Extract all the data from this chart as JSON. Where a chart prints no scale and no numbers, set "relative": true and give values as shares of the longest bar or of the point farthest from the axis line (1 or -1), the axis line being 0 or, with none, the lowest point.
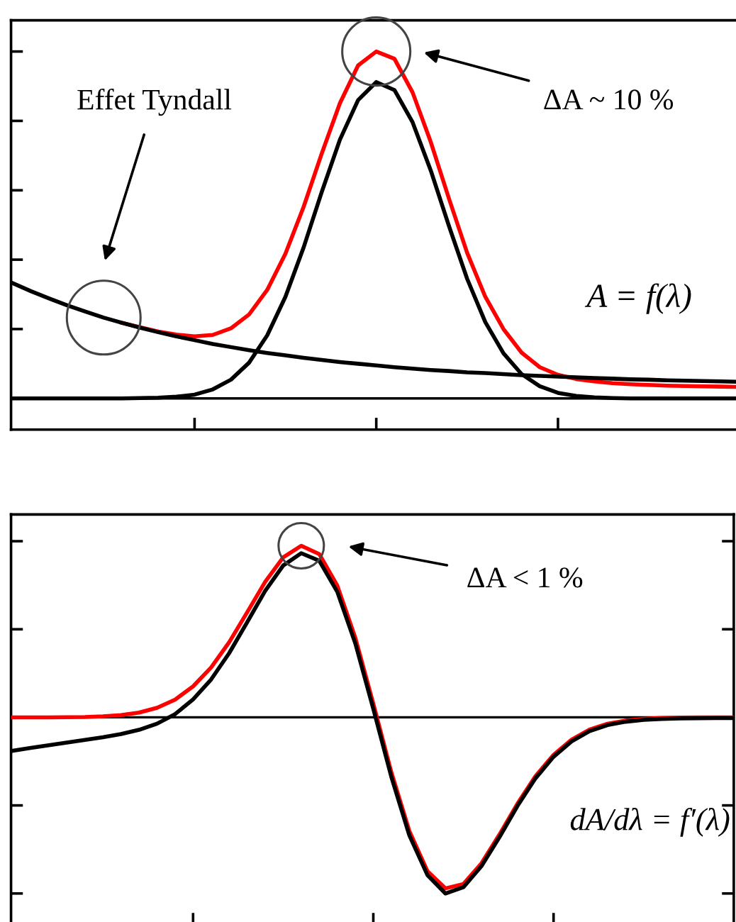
{
  "chart_data": [
    {
      "type": "line",
      "relative": true,
      "tick_labels": false,
      "grid": false,
      "legend": false,
      "marker": "none",
      "line_style": "solid",
      "categories": [
        null,
        null,
        null,
        null,
        null,
        null,
        null,
        null,
        null,
        null,
        null,
        null,
        null,
        null,
        null,
        null,
        null,
        null,
        null,
        null,
        null,
        null,
        null,
        null,
        null,
        null,
        null,
        null,
        null,
        null,
        null,
        null,
        null,
        null,
        null,
        null,
        null,
        null,
        null,
        null,
        null
      ],
      "series": [
        {
          "color": "#ff0000",
          "values": [
            null,
            null,
            null,
            null,
            null,
            null,
            0.218,
            0.205,
            0.193,
            0.184,
            0.179,
            0.183,
            0.202,
            0.242,
            0.313,
            0.417,
            0.552,
            0.706,
            0.851,
            0.96,
            1.0,
            0.979,
            0.882,
            0.739,
            0.576,
            0.42,
            0.293,
            0.2,
            0.132,
            0.09,
            0.068,
            0.056,
            0.049,
            0.044,
            0.041,
            0.039,
            0.037,
            0.036,
            0.035,
            0.034,
            0.033
          ]
        },
        {
          "color": "#000000",
          "values": [
            0,
            0,
            0,
            0,
            0,
            0,
            0,
            0.001,
            0.002,
            0.005,
            0.011,
            0.026,
            0.054,
            0.103,
            0.182,
            0.293,
            0.435,
            0.595,
            0.746,
            0.86,
            0.912,
            0.889,
            0.796,
            0.657,
            0.497,
            0.345,
            0.22,
            0.13,
            0.07,
            0.035,
            0.016,
            0.007,
            0.003,
            0.001,
            0,
            0,
            0,
            0,
            0,
            0,
            0
          ]
        },
        {
          "color": "#000000",
          "values": [
            0.332,
            0.309,
            0.288,
            0.268,
            0.25,
            0.233,
            0.218,
            0.204,
            0.191,
            0.179,
            0.168,
            0.157,
            0.148,
            0.139,
            0.131,
            0.124,
            0.117,
            0.111,
            0.105,
            0.1,
            0.095,
            0.09,
            0.086,
            0.082,
            0.079,
            0.075,
            0.073,
            0.07,
            0.067,
            0.065,
            0.063,
            0.061,
            0.059,
            0.057,
            0.055,
            0.054,
            0.052,
            0.051,
            0.05,
            0.049,
            0.048
          ]
        }
      ],
      "annotations": [
        "Effet Tyndall",
        "ΔA ~ 10 %",
        "A = f(λ)"
      ]
    },
    {
      "type": "line",
      "relative": true,
      "tick_labels": false,
      "grid": false,
      "legend": false,
      "marker": "none",
      "line_style": "solid",
      "categories": [
        null,
        null,
        null,
        null,
        null,
        null,
        null,
        null,
        null,
        null,
        null,
        null,
        null,
        null,
        null,
        null,
        null,
        null,
        null,
        null,
        null,
        null,
        null,
        null,
        null,
        null,
        null,
        null,
        null,
        null,
        null,
        null,
        null,
        null,
        null,
        null,
        null,
        null,
        null,
        null,
        null
      ],
      "series": [
        {
          "color": "#ff0000",
          "values": [
            0,
            0,
            0,
            0.001,
            0.002,
            0.006,
            0.013,
            0.027,
            0.054,
            0.1,
            0.176,
            0.283,
            0.426,
            0.596,
            0.769,
            0.908,
            0.974,
            0.927,
            0.748,
            0.452,
            0.077,
            -0.312,
            -0.646,
            -0.873,
            -0.971,
            -0.946,
            -0.829,
            -0.665,
            -0.49,
            -0.334,
            -0.213,
            -0.127,
            -0.069,
            -0.036,
            -0.018,
            -0.008,
            -0.003,
            -0.001,
            0,
            0,
            0
          ]
        },
        {
          "color": "#000000",
          "values": [
            -0.19,
            -0.173,
            -0.158,
            -0.143,
            -0.128,
            -0.113,
            -0.095,
            -0.071,
            -0.036,
            0.018,
            0.102,
            0.215,
            0.364,
            0.54,
            0.718,
            0.862,
            0.932,
            0.889,
            0.713,
            0.42,
            0.048,
            -0.338,
            -0.67,
            -0.895,
            -1.0,
            -0.964,
            -0.845,
            -0.68,
            -0.503,
            -0.346,
            -0.224,
            -0.137,
            -0.078,
            -0.044,
            -0.025,
            -0.014,
            -0.009,
            -0.006,
            -0.005,
            -0.004,
            -0.004
          ]
        }
      ],
      "annotations": [
        "ΔA < 1 %",
        "dA/dλ = f′(λ)"
      ]
    }
  ]
}
